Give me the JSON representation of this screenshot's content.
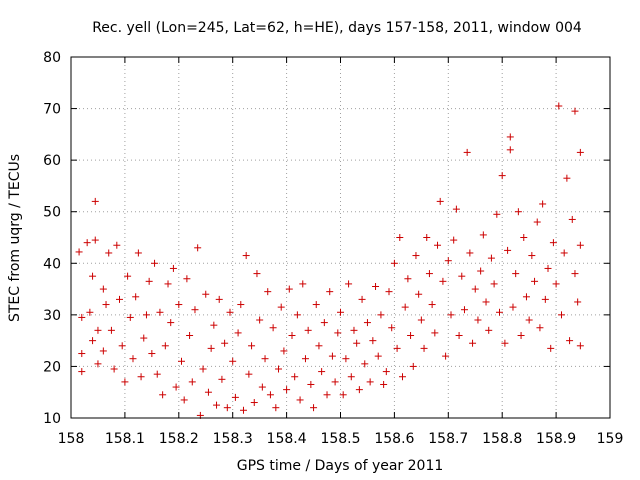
{
  "chart_data": {
    "type": "scatter",
    "title": "Rec. yell (Lon=245, Lat=62, h=HE), days 157-158, 2011, window 004",
    "xlabel": "GPS time / Days of year 2011",
    "ylabel": "STEC from uqrg / TECUs",
    "xlim": [
      158,
      159
    ],
    "ylim": [
      10,
      80
    ],
    "xticks": [
      158,
      158.1,
      158.2,
      158.3,
      158.4,
      158.5,
      158.6,
      158.7,
      158.8,
      158.9,
      159
    ],
    "xtick_labels": [
      "158",
      "158.1",
      "158.2",
      "158.3",
      "158.4",
      "158.5",
      "158.6",
      "158.7",
      "158.8",
      "158.9",
      "159"
    ],
    "yticks": [
      10,
      20,
      30,
      40,
      50,
      60,
      70,
      80
    ],
    "ytick_labels": [
      "10",
      "20",
      "30",
      "40",
      "50",
      "60",
      "70",
      "80"
    ],
    "marker": "+",
    "marker_color": "#cc0000",
    "grid": true,
    "series": [
      {
        "points": [
          [
            158.015,
            42.2
          ],
          [
            158.02,
            22.5
          ],
          [
            158.02,
            29.5
          ],
          [
            158.02,
            19
          ],
          [
            158.03,
            44
          ],
          [
            158.035,
            30.5
          ],
          [
            158.04,
            25
          ],
          [
            158.04,
            37.5
          ],
          [
            158.045,
            52
          ],
          [
            158.045,
            44.5
          ],
          [
            158.05,
            27
          ],
          [
            158.05,
            20.5
          ],
          [
            158.06,
            35
          ],
          [
            158.06,
            23
          ],
          [
            158.065,
            32
          ],
          [
            158.07,
            42
          ],
          [
            158.075,
            27
          ],
          [
            158.08,
            19.5
          ],
          [
            158.085,
            43.5
          ],
          [
            158.09,
            33
          ],
          [
            158.095,
            24
          ],
          [
            158.1,
            17
          ],
          [
            158.105,
            37.5
          ],
          [
            158.11,
            29.5
          ],
          [
            158.115,
            21.5
          ],
          [
            158.12,
            33.5
          ],
          [
            158.125,
            42
          ],
          [
            158.13,
            18
          ],
          [
            158.135,
            25.5
          ],
          [
            158.14,
            30
          ],
          [
            158.145,
            36.5
          ],
          [
            158.15,
            22.5
          ],
          [
            158.155,
            40
          ],
          [
            158.16,
            18.5
          ],
          [
            158.165,
            30.5
          ],
          [
            158.17,
            14.5
          ],
          [
            158.175,
            24
          ],
          [
            158.18,
            36
          ],
          [
            158.185,
            28.5
          ],
          [
            158.19,
            39
          ],
          [
            158.195,
            16
          ],
          [
            158.2,
            32
          ],
          [
            158.205,
            21
          ],
          [
            158.21,
            13.5
          ],
          [
            158.215,
            37
          ],
          [
            158.22,
            26
          ],
          [
            158.225,
            17
          ],
          [
            158.23,
            31
          ],
          [
            158.235,
            43
          ],
          [
            158.24,
            10.5
          ],
          [
            158.245,
            19.5
          ],
          [
            158.25,
            34
          ],
          [
            158.255,
            15
          ],
          [
            158.26,
            23.5
          ],
          [
            158.265,
            28
          ],
          [
            158.27,
            12.5
          ],
          [
            158.275,
            33
          ],
          [
            158.28,
            17.5
          ],
          [
            158.285,
            24.5
          ],
          [
            158.29,
            12
          ],
          [
            158.295,
            30.5
          ],
          [
            158.3,
            21
          ],
          [
            158.305,
            14
          ],
          [
            158.31,
            26.5
          ],
          [
            158.315,
            32
          ],
          [
            158.32,
            11.5
          ],
          [
            158.325,
            41.5
          ],
          [
            158.33,
            18.5
          ],
          [
            158.335,
            24
          ],
          [
            158.34,
            13
          ],
          [
            158.345,
            38
          ],
          [
            158.35,
            29
          ],
          [
            158.355,
            16
          ],
          [
            158.36,
            21.5
          ],
          [
            158.365,
            34.5
          ],
          [
            158.37,
            14.5
          ],
          [
            158.375,
            27.5
          ],
          [
            158.38,
            12
          ],
          [
            158.385,
            19.5
          ],
          [
            158.39,
            31.5
          ],
          [
            158.395,
            23
          ],
          [
            158.4,
            15.5
          ],
          [
            158.405,
            35
          ],
          [
            158.41,
            26
          ],
          [
            158.415,
            18
          ],
          [
            158.42,
            30
          ],
          [
            158.425,
            13.5
          ],
          [
            158.43,
            36
          ],
          [
            158.435,
            21.5
          ],
          [
            158.44,
            27
          ],
          [
            158.445,
            16.5
          ],
          [
            158.45,
            12
          ],
          [
            158.455,
            32
          ],
          [
            158.46,
            24
          ],
          [
            158.465,
            19
          ],
          [
            158.47,
            28.5
          ],
          [
            158.475,
            14.5
          ],
          [
            158.48,
            34.5
          ],
          [
            158.485,
            22
          ],
          [
            158.49,
            17
          ],
          [
            158.495,
            26.5
          ],
          [
            158.5,
            30.5
          ],
          [
            158.505,
            14.5
          ],
          [
            158.51,
            21.5
          ],
          [
            158.515,
            36
          ],
          [
            158.52,
            18
          ],
          [
            158.525,
            27
          ],
          [
            158.53,
            24.5
          ],
          [
            158.535,
            15.5
          ],
          [
            158.54,
            33
          ],
          [
            158.545,
            20.5
          ],
          [
            158.55,
            28.5
          ],
          [
            158.555,
            17
          ],
          [
            158.56,
            25
          ],
          [
            158.565,
            35.5
          ],
          [
            158.57,
            22
          ],
          [
            158.575,
            30
          ],
          [
            158.58,
            16.5
          ],
          [
            158.585,
            19
          ],
          [
            158.59,
            34.5
          ],
          [
            158.595,
            27.5
          ],
          [
            158.6,
            40
          ],
          [
            158.605,
            23.5
          ],
          [
            158.61,
            45
          ],
          [
            158.615,
            18
          ],
          [
            158.62,
            31.5
          ],
          [
            158.625,
            37
          ],
          [
            158.63,
            26
          ],
          [
            158.635,
            20
          ],
          [
            158.64,
            41.5
          ],
          [
            158.645,
            34
          ],
          [
            158.65,
            29
          ],
          [
            158.655,
            23.5
          ],
          [
            158.66,
            45
          ],
          [
            158.665,
            38
          ],
          [
            158.67,
            32
          ],
          [
            158.675,
            26.5
          ],
          [
            158.68,
            43.5
          ],
          [
            158.685,
            52
          ],
          [
            158.69,
            36.5
          ],
          [
            158.695,
            22
          ],
          [
            158.7,
            40.5
          ],
          [
            158.705,
            30
          ],
          [
            158.71,
            44.5
          ],
          [
            158.715,
            50.5
          ],
          [
            158.72,
            26
          ],
          [
            158.725,
            37.5
          ],
          [
            158.73,
            31
          ],
          [
            158.735,
            61.5
          ],
          [
            158.74,
            42
          ],
          [
            158.745,
            24.5
          ],
          [
            158.75,
            35
          ],
          [
            158.755,
            29
          ],
          [
            158.76,
            38.5
          ],
          [
            158.765,
            45.5
          ],
          [
            158.77,
            32.5
          ],
          [
            158.775,
            27
          ],
          [
            158.78,
            41
          ],
          [
            158.785,
            36
          ],
          [
            158.79,
            49.5
          ],
          [
            158.795,
            30.5
          ],
          [
            158.8,
            57
          ],
          [
            158.805,
            24.5
          ],
          [
            158.81,
            42.5
          ],
          [
            158.815,
            64.5
          ],
          [
            158.815,
            62
          ],
          [
            158.82,
            31.5
          ],
          [
            158.825,
            38
          ],
          [
            158.83,
            50
          ],
          [
            158.835,
            26
          ],
          [
            158.84,
            45
          ],
          [
            158.845,
            33.5
          ],
          [
            158.85,
            29
          ],
          [
            158.855,
            41.5
          ],
          [
            158.86,
            36.5
          ],
          [
            158.865,
            48
          ],
          [
            158.87,
            27.5
          ],
          [
            158.875,
            51.5
          ],
          [
            158.88,
            33
          ],
          [
            158.885,
            39
          ],
          [
            158.89,
            23.5
          ],
          [
            158.895,
            44
          ],
          [
            158.9,
            36
          ],
          [
            158.905,
            70.5
          ],
          [
            158.91,
            30
          ],
          [
            158.915,
            42
          ],
          [
            158.92,
            56.5
          ],
          [
            158.925,
            25
          ],
          [
            158.93,
            48.5
          ],
          [
            158.935,
            69.5
          ],
          [
            158.935,
            38
          ],
          [
            158.94,
            32.5
          ],
          [
            158.945,
            61.5
          ],
          [
            158.945,
            43.5
          ],
          [
            158.945,
            24
          ]
        ]
      }
    ]
  }
}
